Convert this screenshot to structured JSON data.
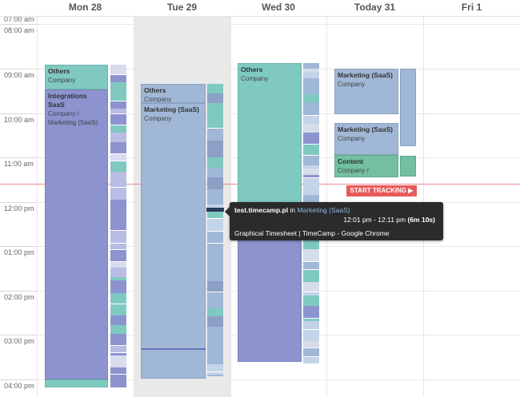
{
  "days": [
    {
      "label": "Mon 28"
    },
    {
      "label": "Tue 29"
    },
    {
      "label": "Wed 30"
    },
    {
      "label": "Today 31"
    },
    {
      "label": "Fri 1"
    }
  ],
  "hours": [
    "07:00 am",
    "08:00 am",
    "09:00 am",
    "10:00 am",
    "11:00 am",
    "12:00 pm",
    "01:00 pm",
    "02:00 pm",
    "03:00 pm",
    "04:00 pm"
  ],
  "entries": {
    "mon_others": {
      "title": "Others",
      "sub": "Company"
    },
    "mon_integrations": {
      "title": "Integrations SaaS",
      "sub": "Company / Marketing (SaaS)"
    },
    "tue_others": {
      "title": "Others",
      "sub": "Company"
    },
    "tue_marketing": {
      "title": "Marketing (SaaS)",
      "sub": "Company"
    },
    "wed_others": {
      "title": "Others",
      "sub": "Company"
    },
    "today_marketing1": {
      "title": "Marketing (SaaS)",
      "sub": "Company"
    },
    "today_marketing2": {
      "title": "Marketing (SaaS)",
      "sub": "Company"
    },
    "today_content": {
      "title": "Content",
      "sub": "Company / Marketing (SaaS)"
    }
  },
  "start_tracking": "START TRACKING ▶",
  "tooltip": {
    "domain": "test.timecamp.pl",
    "in": "in",
    "project": "Marketing (SaaS)",
    "time_range": "12:01 pm - 12:11 pm",
    "duration": "(6m 10s)",
    "app": "Graphical Timesheet | TimeCamp - Google Chrome"
  },
  "colors": {
    "teal": "#7fc9c1",
    "purple": "#8c93cf",
    "blue": "#a0b7d6",
    "green": "#72bfa2",
    "now_line": "#e88a8a",
    "track_button": "#e85a5a",
    "tooltip_bg": "#2b2b2b"
  }
}
